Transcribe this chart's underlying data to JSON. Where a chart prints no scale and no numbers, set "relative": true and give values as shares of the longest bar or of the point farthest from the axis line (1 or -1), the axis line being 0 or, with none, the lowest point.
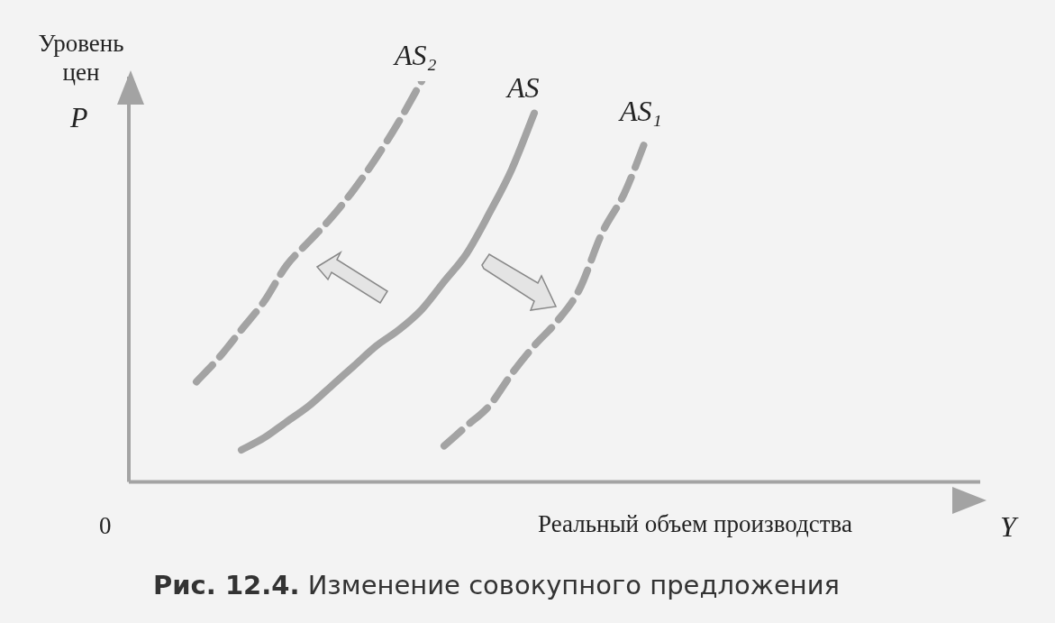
{
  "chart_data": {
    "type": "line",
    "relative": true,
    "ylabel": "Уровень цен",
    "xlabel": "Реальный объем производства",
    "legend": false,
    "grid": false,
    "marker": "none",
    "annotations": [
      "P",
      "Y",
      "0",
      "Рис. 12.4. Изменение совокупного предложения"
    ],
    "categories": [
      null,
      null,
      null,
      null,
      null,
      null,
      null,
      null,
      null,
      null,
      null,
      null,
      null,
      null,
      null,
      null,
      null,
      null,
      null,
      null,
      null,
      null,
      null,
      null,
      null,
      null,
      null,
      null,
      null,
      null,
      null,
      null,
      null,
      null,
      null,
      null,
      null,
      null,
      null
    ],
    "series": [
      {
        "name": "AS₂",
        "color": "#a3a3a3",
        "line_style": "dashed",
        "values": [
          null,
          null,
          null,
          0.25,
          0.31,
          0.38,
          0.45,
          0.54,
          0.6,
          0.66,
          0.73,
          0.81,
          0.9,
          1.0,
          null,
          null,
          null,
          null,
          null,
          null,
          null,
          null,
          null,
          null,
          null,
          null,
          null,
          null,
          null,
          null,
          null,
          null,
          null,
          null,
          null,
          null,
          null,
          null,
          null
        ]
      },
      {
        "name": "AS",
        "color": "#a3a3a3",
        "line_style": "solid",
        "values": [
          null,
          null,
          null,
          null,
          null,
          0.08,
          0.11,
          0.15,
          0.19,
          0.24,
          0.29,
          0.34,
          0.38,
          0.43,
          0.5,
          0.57,
          0.67,
          0.78,
          0.92,
          null,
          null,
          null,
          null,
          null,
          null,
          null,
          null,
          null,
          null,
          null,
          null,
          null,
          null,
          null,
          null,
          null,
          null,
          null,
          null
        ]
      },
      {
        "name": "AS₁",
        "color": "#a3a3a3",
        "line_style": "dashed",
        "values": [
          null,
          null,
          null,
          null,
          null,
          null,
          null,
          null,
          null,
          null,
          null,
          null,
          null,
          null,
          0.09,
          0.14,
          0.19,
          0.27,
          0.34,
          0.4,
          0.48,
          0.62,
          0.72,
          0.86,
          null,
          null,
          null,
          null,
          null,
          null,
          null,
          null,
          null,
          null,
          null,
          null,
          null,
          null,
          null
        ]
      }
    ]
  }
}
